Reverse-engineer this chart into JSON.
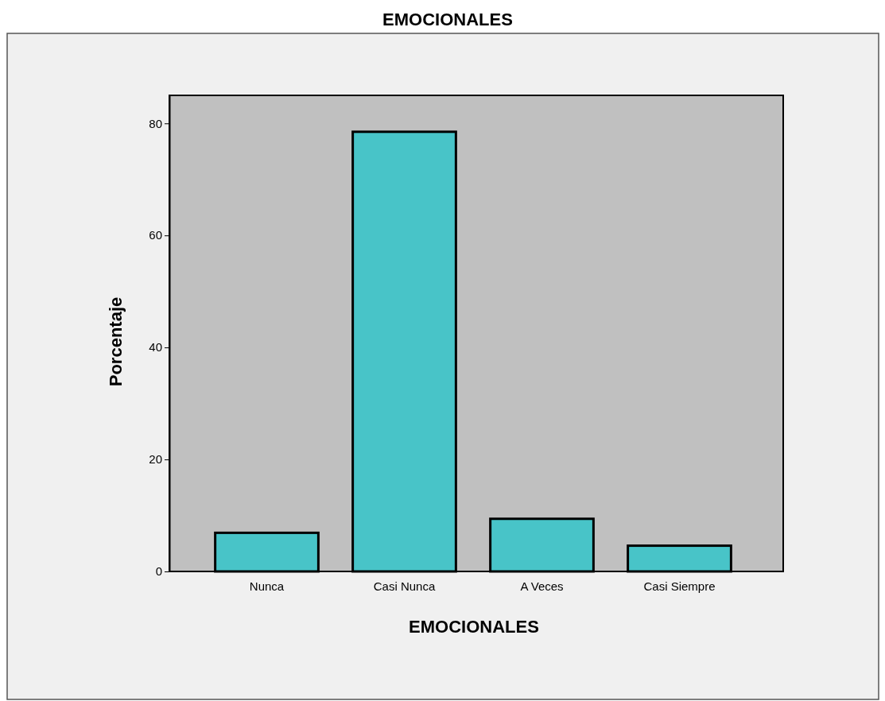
{
  "chart_data": {
    "type": "bar",
    "title": "EMOCIONALES",
    "xlabel": "EMOCIONALES",
    "ylabel": "Porcentaje",
    "categories": [
      "Nunca",
      "Casi Nunca",
      "A Veces",
      "Casi Siempre"
    ],
    "values": [
      6.9,
      78.5,
      9.4,
      4.6
    ],
    "color": "#48c4c8",
    "ylim": [
      0,
      85
    ],
    "yticks": [
      0,
      20,
      40,
      60,
      80
    ],
    "grid": false
  }
}
